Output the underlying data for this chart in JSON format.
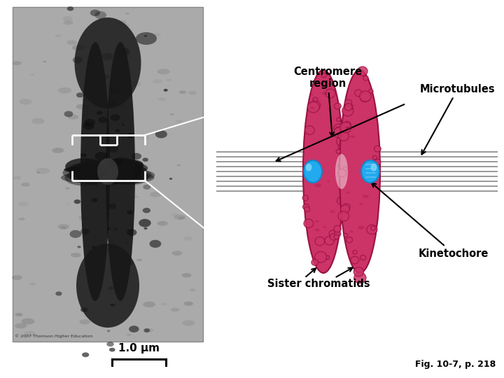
{
  "bg_color": "#ffffff",
  "label_centromere": "Centromere\nregion",
  "label_microtubules": "Microtubules",
  "label_kinetochore": "Kinetochore",
  "label_sister": "Sister chromatids",
  "label_scale": "1.0 μm",
  "label_fig": "Fig. 10-7, p. 218",
  "label_copyright": "© 2007 Thomson Higher Education",
  "chromatid_color": "#cc3366",
  "chromatid_dark": "#991144",
  "chromatid_edge": "#cc0055",
  "kinetochore_color": "#22aaee",
  "kinetochore_highlight": "#88ddff",
  "microtubule_color": "#999999",
  "bracket_color": "#ffffff",
  "photo_bg": "#aaaaaa",
  "photo_border": "#888888",
  "font_color": "#000000",
  "font_size_label": 10.5,
  "font_size_scale": 11,
  "font_size_fig": 9,
  "font_size_copy": 4.5
}
